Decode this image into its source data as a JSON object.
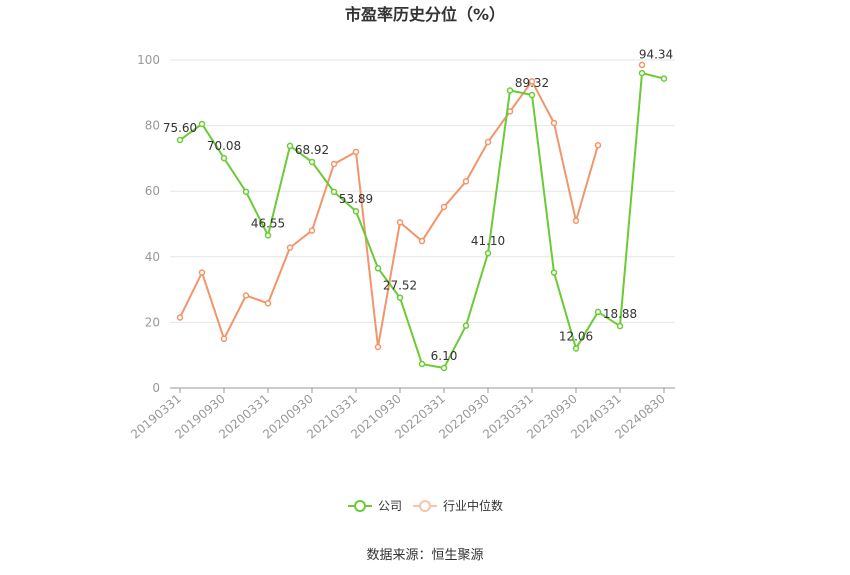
{
  "chart_data": {
    "type": "line",
    "title": "市盈率历史分位（%）",
    "ylim": [
      0,
      100
    ],
    "yticks": [
      0,
      20,
      40,
      60,
      80,
      100
    ],
    "grid": true,
    "legend_position": "bottom",
    "x": [
      "20190331",
      "20190630",
      "20190930",
      "20191231",
      "20200331",
      "20200630",
      "20200930",
      "20201231",
      "20210331",
      "20210630",
      "20210930",
      "20211231",
      "20220331",
      "20220630",
      "20220930",
      "20221231",
      "20230331",
      "20230630",
      "20230930",
      "20231231",
      "20240331",
      "20240630",
      "20240830"
    ],
    "x_tick_labels": [
      "20190331",
      "20190930",
      "20200331",
      "20200930",
      "20210331",
      "20210930",
      "20220331",
      "20220930",
      "20230331",
      "20230930",
      "20240331",
      "20240830"
    ],
    "series": [
      {
        "name": "公司",
        "color": "#6acb35",
        "values": [
          75.6,
          80.5,
          70.08,
          59.8,
          46.55,
          73.8,
          68.92,
          59.8,
          53.89,
          36.5,
          27.52,
          7.3,
          6.1,
          19.0,
          41.1,
          90.7,
          89.32,
          35.2,
          12.06,
          23.2,
          18.88,
          96.0,
          94.34
        ]
      },
      {
        "name": "行业中位数",
        "color": "#f2956b",
        "values": [
          21.5,
          35.2,
          15.0,
          28.2,
          25.8,
          42.8,
          48.0,
          68.3,
          72.0,
          12.5,
          50.5,
          44.8,
          55.2,
          63.0,
          75.0,
          84.3,
          93.5,
          80.8,
          51.0,
          74.0,
          null,
          98.5,
          null
        ]
      }
    ],
    "data_labels": [
      {
        "index": 0,
        "text": "75.60"
      },
      {
        "index": 2,
        "text": "70.08"
      },
      {
        "index": 4,
        "text": "46.55"
      },
      {
        "index": 6,
        "text": "68.92"
      },
      {
        "index": 8,
        "text": "53.89"
      },
      {
        "index": 10,
        "text": "27.52"
      },
      {
        "index": 12,
        "text": "6.10"
      },
      {
        "index": 14,
        "text": "41.10"
      },
      {
        "index": 16,
        "text": "89.32"
      },
      {
        "index": 18,
        "text": "12.06"
      },
      {
        "index": 20,
        "text": "18.88"
      },
      {
        "index": 22,
        "text": "94.34"
      }
    ]
  },
  "legend": {
    "company_label": "公司",
    "industry_label": "行业中位数"
  },
  "source_text": "数据来源：恒生聚源"
}
